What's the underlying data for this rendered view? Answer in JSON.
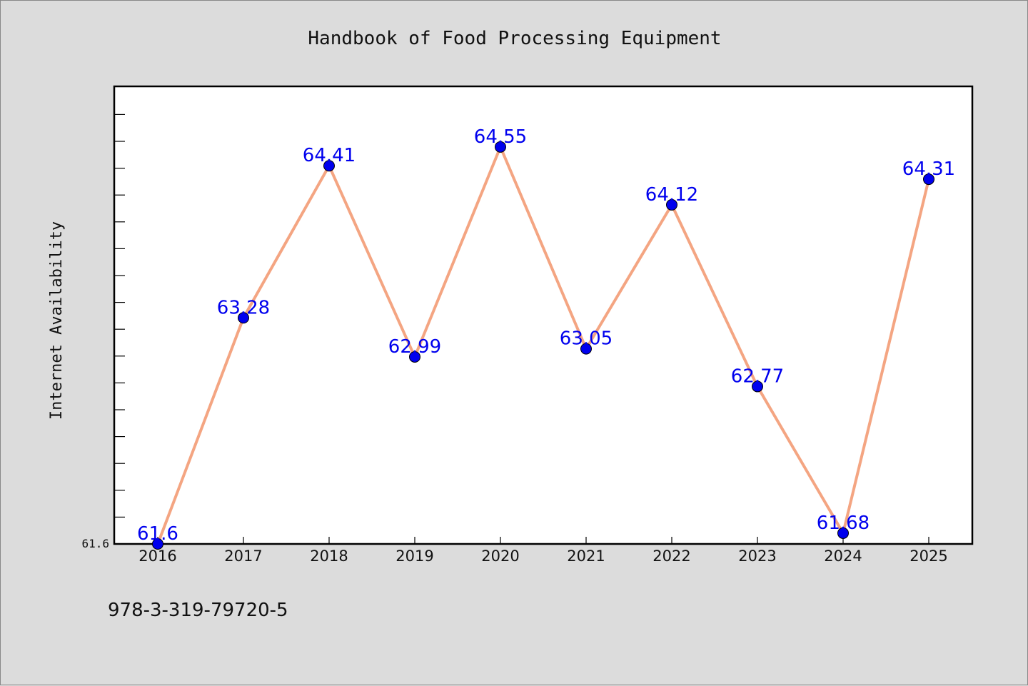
{
  "chart_data": {
    "type": "line",
    "title": "Handbook of Food Processing Equipment",
    "xlabel": "",
    "ylabel": "Internet Availability",
    "categories": [
      "2016",
      "2017",
      "2018",
      "2019",
      "2020",
      "2021",
      "2022",
      "2023",
      "2024",
      "2025"
    ],
    "series": [
      {
        "values": [
          61.6,
          63.28,
          64.41,
          62.99,
          64.55,
          63.05,
          64.12,
          62.77,
          61.68,
          64.31
        ],
        "data_labels": [
          "61.6",
          "63.28",
          "64.41",
          "62.99",
          "64.55",
          "63.05",
          "64.12",
          "62.77",
          "61.68",
          "64.31"
        ]
      }
    ],
    "y_tick_labels": [
      "61.6"
    ],
    "ylim": [
      61.6,
      65.0
    ],
    "grid": false,
    "legend": "none",
    "colors": {
      "line": "#f4a582",
      "marker": "#0000ee",
      "label": "#0000ee",
      "plot_background": "#ffffff",
      "figure_background": "#dcdcdc"
    }
  },
  "footer": {
    "isbn": "978-3-319-79720-5"
  }
}
